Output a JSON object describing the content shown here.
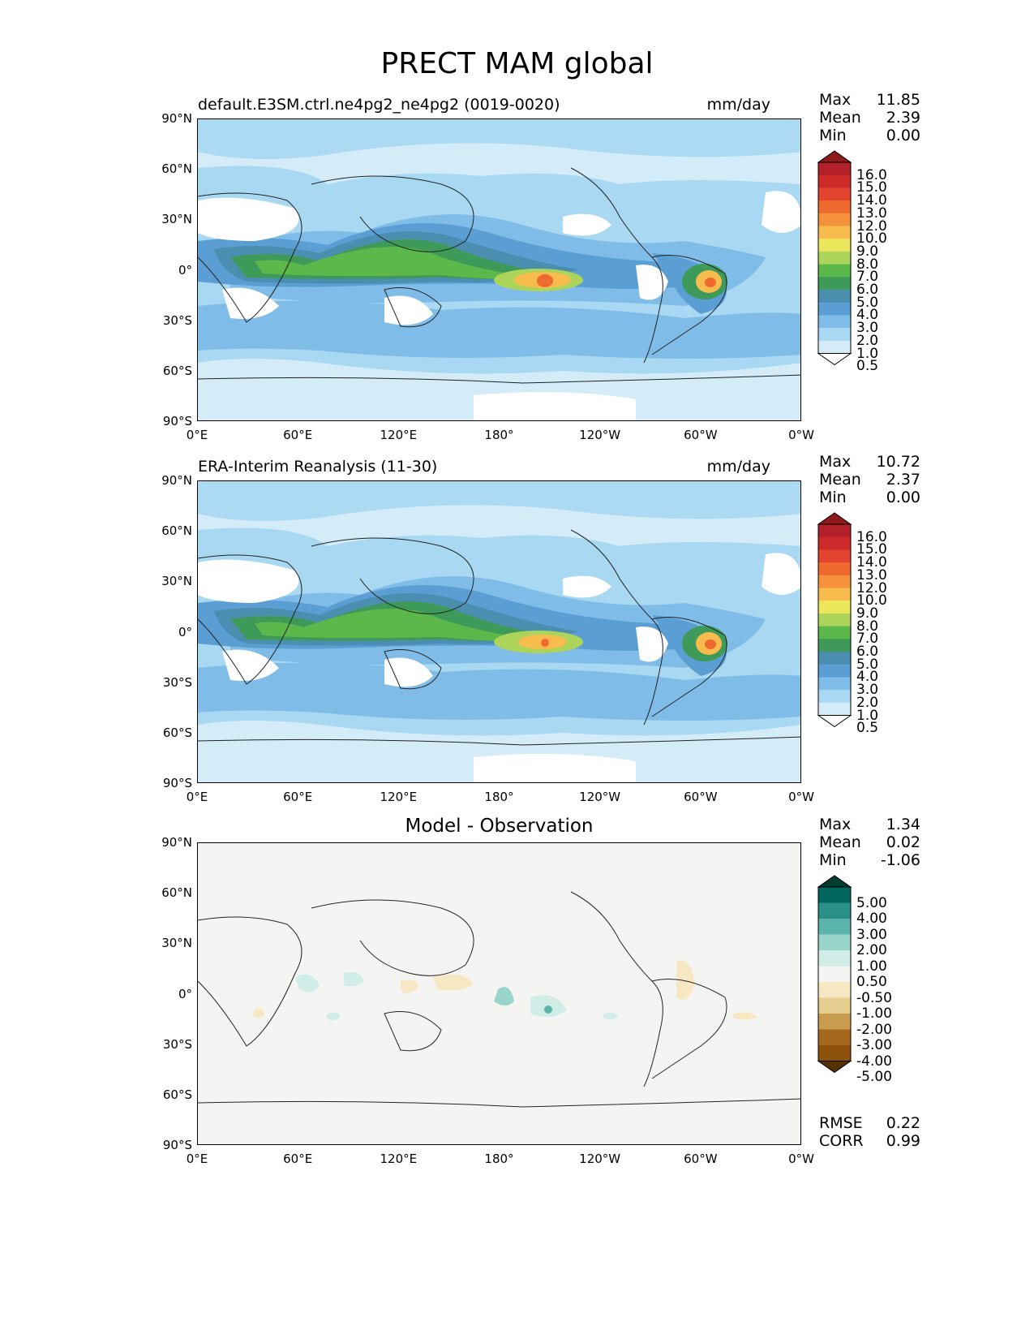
{
  "title": "PRECT MAM global",
  "panels": [
    {
      "left_title": "default.E3SM.ctrl.ne4pg2_ne4pg2 (0019-0020)",
      "right_title": "mm/day",
      "stats": [
        {
          "label": "Max",
          "value": "11.85"
        },
        {
          "label": "Mean",
          "value": "2.39"
        },
        {
          "label": "Min",
          "value": "0.00"
        }
      ]
    },
    {
      "left_title": "ERA-Interim Reanalysis (11-30)",
      "right_title": "mm/day",
      "stats": [
        {
          "label": "Max",
          "value": "10.72"
        },
        {
          "label": "Mean",
          "value": "2.37"
        },
        {
          "label": "Min",
          "value": "0.00"
        }
      ]
    },
    {
      "center_title": "Model - Observation",
      "stats": [
        {
          "label": "Max",
          "value": "1.34"
        },
        {
          "label": "Mean",
          "value": "0.02"
        },
        {
          "label": "Min",
          "value": "-1.06"
        }
      ],
      "extra_stats": [
        {
          "label": "RMSE",
          "value": "0.22"
        },
        {
          "label": "CORR",
          "value": "0.99"
        }
      ]
    }
  ],
  "lat_ticks": [
    "90°N",
    "60°N",
    "30°N",
    "0°",
    "30°S",
    "60°S",
    "90°S"
  ],
  "lon_ticks": [
    "0°E",
    "60°E",
    "120°E",
    "180°",
    "120°W",
    "60°W",
    "0°W"
  ],
  "precip_colorbar": {
    "labels": [
      "16.0",
      "15.0",
      "14.0",
      "13.0",
      "12.0",
      "10.0",
      "9.0",
      "8.0",
      "7.0",
      "6.0",
      "5.0",
      "4.0",
      "3.0",
      "2.0",
      "1.0",
      "0.5"
    ],
    "colors": [
      "#8e1a1a",
      "#b2202a",
      "#cf2a2a",
      "#e2432f",
      "#ef6a2f",
      "#f6913b",
      "#f8bb4e",
      "#ece65c",
      "#acd45a",
      "#5cb84a",
      "#3e9a58",
      "#4b8eb0",
      "#5a9ed4",
      "#7fbde8",
      "#a8d8f2",
      "#d4ecf8",
      "#ffffff"
    ]
  },
  "diff_colorbar": {
    "labels": [
      "5.00",
      "4.00",
      "3.00",
      "2.00",
      "1.00",
      "0.50",
      "-0.50",
      "-1.00",
      "-2.00",
      "-3.00",
      "-4.00",
      "-5.00"
    ],
    "colors": [
      "#003c30",
      "#01665e",
      "#2a8f86",
      "#5ab4ac",
      "#98d4ca",
      "#d0ede8",
      "#f4f4f2",
      "#f6e8c3",
      "#e5cd8f",
      "#c89b4f",
      "#a6681e",
      "#8c510a",
      "#543005"
    ]
  },
  "chart_data": [
    {
      "type": "heatmap",
      "title": "default.E3SM.ctrl.ne4pg2_ne4pg2 (0019-0020)",
      "units": "mm/day",
      "max": 11.85,
      "mean": 2.39,
      "min": 0.0
    },
    {
      "type": "heatmap",
      "title": "ERA-Interim Reanalysis (11-30)",
      "units": "mm/day",
      "max": 10.72,
      "mean": 2.37,
      "min": 0.0
    },
    {
      "type": "heatmap",
      "title": "Model - Observation",
      "max": 1.34,
      "mean": 0.02,
      "min": -1.06,
      "rmse": 0.22,
      "corr": 0.99
    }
  ]
}
